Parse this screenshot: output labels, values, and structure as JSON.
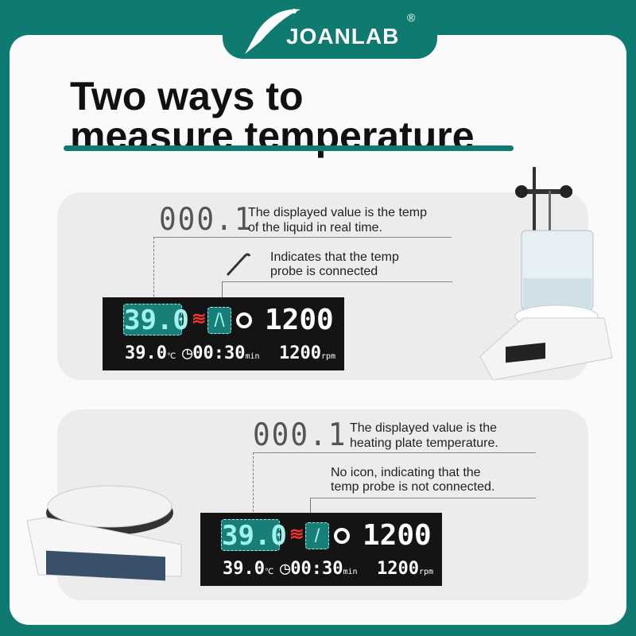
{
  "brand": {
    "name": "JOANLAB",
    "registered": "®"
  },
  "title": {
    "line1": "Two ways to",
    "line2": "measure temperature"
  },
  "colors": {
    "brand_teal": "#0f7a70",
    "highlight": "#177f78",
    "heat_icon": "#e33333"
  },
  "panels": [
    {
      "segment_value": "000.1",
      "note1": [
        "The displayed value is the temp",
        "of the liquid in real time."
      ],
      "note2": [
        "Indicates that the temp",
        "probe is connected"
      ],
      "probe_connected": true,
      "display": {
        "main_temp": "39.0",
        "speed": "1200",
        "set_temp": "39.0",
        "temp_unit": "℃",
        "timer": "00:30",
        "timer_unit": "min",
        "set_speed": "1200",
        "speed_unit": "rpm"
      },
      "icons": [
        "thermometer-probe-icon",
        "heating-icon",
        "probe-icon",
        "stir-icon",
        "clock-icon"
      ]
    },
    {
      "segment_value": "000.1",
      "note1": [
        "The displayed value is the",
        "heating plate temperature."
      ],
      "note2": [
        "No icon, indicating that the",
        "temp probe is not connected."
      ],
      "probe_connected": false,
      "display": {
        "main_temp": "39.0",
        "speed": "1200",
        "set_temp": "39.0",
        "temp_unit": "℃",
        "timer": "00:30",
        "timer_unit": "min",
        "set_speed": "1200",
        "speed_unit": "rpm"
      },
      "icons": [
        "heating-icon",
        "probe-icon",
        "stir-icon",
        "clock-icon"
      ]
    }
  ]
}
